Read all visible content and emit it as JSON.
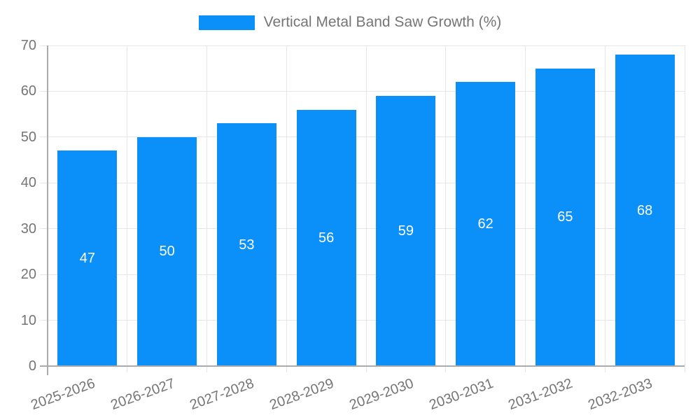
{
  "legend": {
    "label": "Vertical Metal Band Saw Growth (%)"
  },
  "chart_data": {
    "type": "bar",
    "title": "Vertical Metal Band Saw Growth (%)",
    "categories": [
      "2025-2026",
      "2026-2027",
      "2027-2028",
      "2028-2029",
      "2029-2030",
      "2030-2031",
      "2031-2032",
      "2032-2033"
    ],
    "values": [
      47,
      50,
      53,
      56,
      59,
      62,
      65,
      68
    ],
    "xlabel": "",
    "ylabel": "",
    "ylim": [
      0,
      70
    ],
    "ytick_step": 10,
    "ytick_labels": [
      "0",
      "10",
      "20",
      "30",
      "40",
      "50",
      "60",
      "70"
    ],
    "grid": true,
    "legend_position": "top",
    "x_label_rotation_deg": -20,
    "bar_labels_shown": true,
    "colors": {
      "bar": "#0a90f8",
      "bar_label": "#ffffff",
      "axis_text": "#757575",
      "grid_line": "#e6e6e6",
      "axis_line": "#ababab",
      "background": "#ffffff"
    }
  }
}
